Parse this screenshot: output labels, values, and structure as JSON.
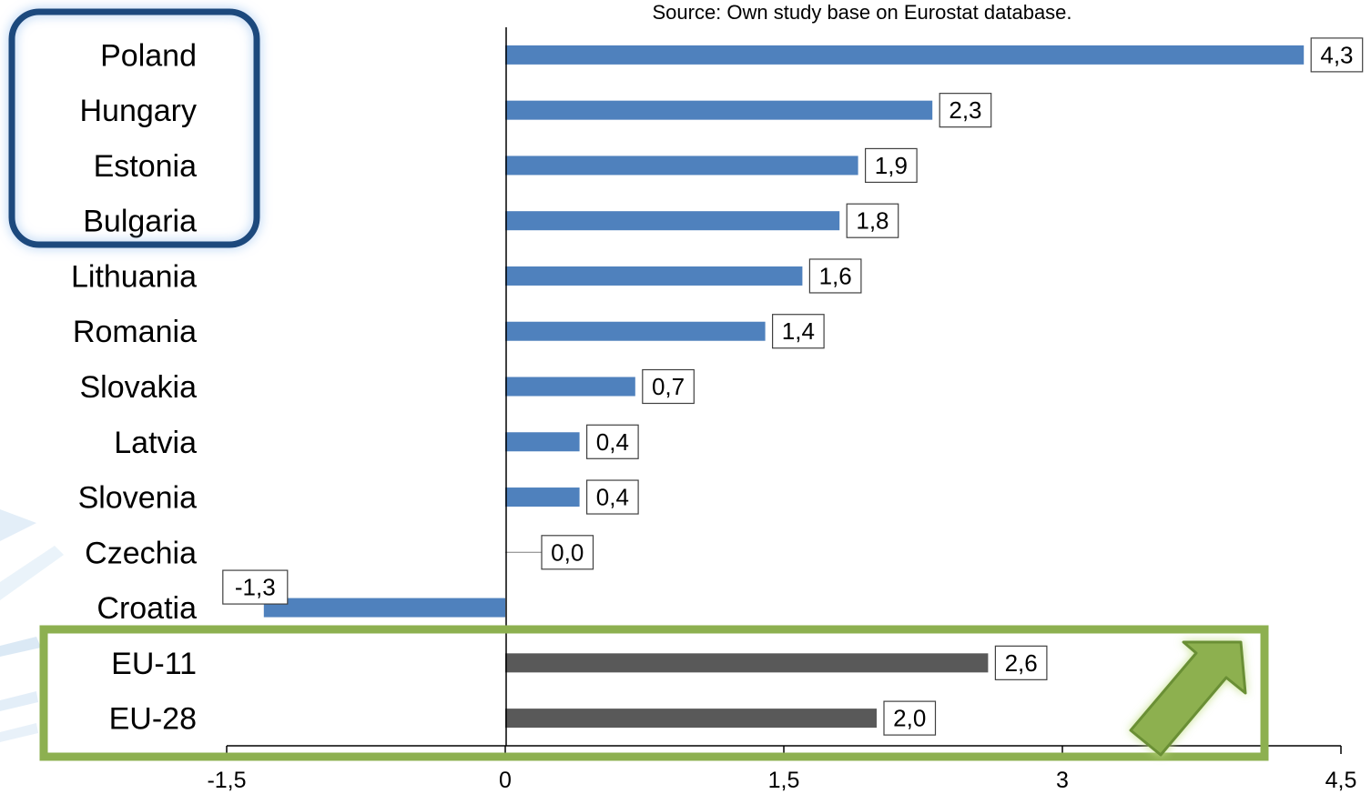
{
  "chart_data": {
    "type": "bar",
    "orientation": "horizontal",
    "source_note": "Source: Own  study base on Eurostat database.",
    "categories": [
      "Poland",
      "Hungary",
      "Estonia",
      "Bulgaria",
      "Lithuania",
      "Romania",
      "Slovakia",
      "Latvia",
      "Slovenia",
      "Czechia",
      "Croatia",
      "EU-11",
      "EU-28"
    ],
    "values": [
      4.3,
      2.3,
      1.9,
      1.8,
      1.6,
      1.4,
      0.7,
      0.4,
      0.4,
      0.0,
      -1.3,
      2.6,
      2.0
    ],
    "data_labels": [
      "4,3",
      "2,3",
      "1,9",
      "1,8",
      "1,6",
      "1,4",
      "0,7",
      "0,4",
      "0,4",
      "0,0",
      "-1,3",
      "2,6",
      "2,0"
    ],
    "xlim": [
      -1.5,
      4.5
    ],
    "xticks": [
      -1.5,
      0,
      1.5,
      3,
      4.5
    ],
    "xtick_labels": [
      "-1,5",
      "0",
      "1,5",
      "3",
      "4,5"
    ],
    "colors": {
      "country_bar": "#4f81bd",
      "aggregate_bar": "#595959",
      "highlight_blue": "#1f497d",
      "highlight_green": "#8db050"
    },
    "bar_color_groups": [
      "country",
      "country",
      "country",
      "country",
      "country",
      "country",
      "country",
      "country",
      "country",
      "country",
      "country",
      "aggregate",
      "aggregate"
    ],
    "annotations": {
      "blue_box_categories": [
        "Poland",
        "Hungary",
        "Estonia",
        "Bulgaria"
      ],
      "green_box_categories": [
        "EU-11",
        "EU-28"
      ],
      "arrow": "up-right-arrow"
    },
    "grid": false,
    "legend": "none"
  }
}
